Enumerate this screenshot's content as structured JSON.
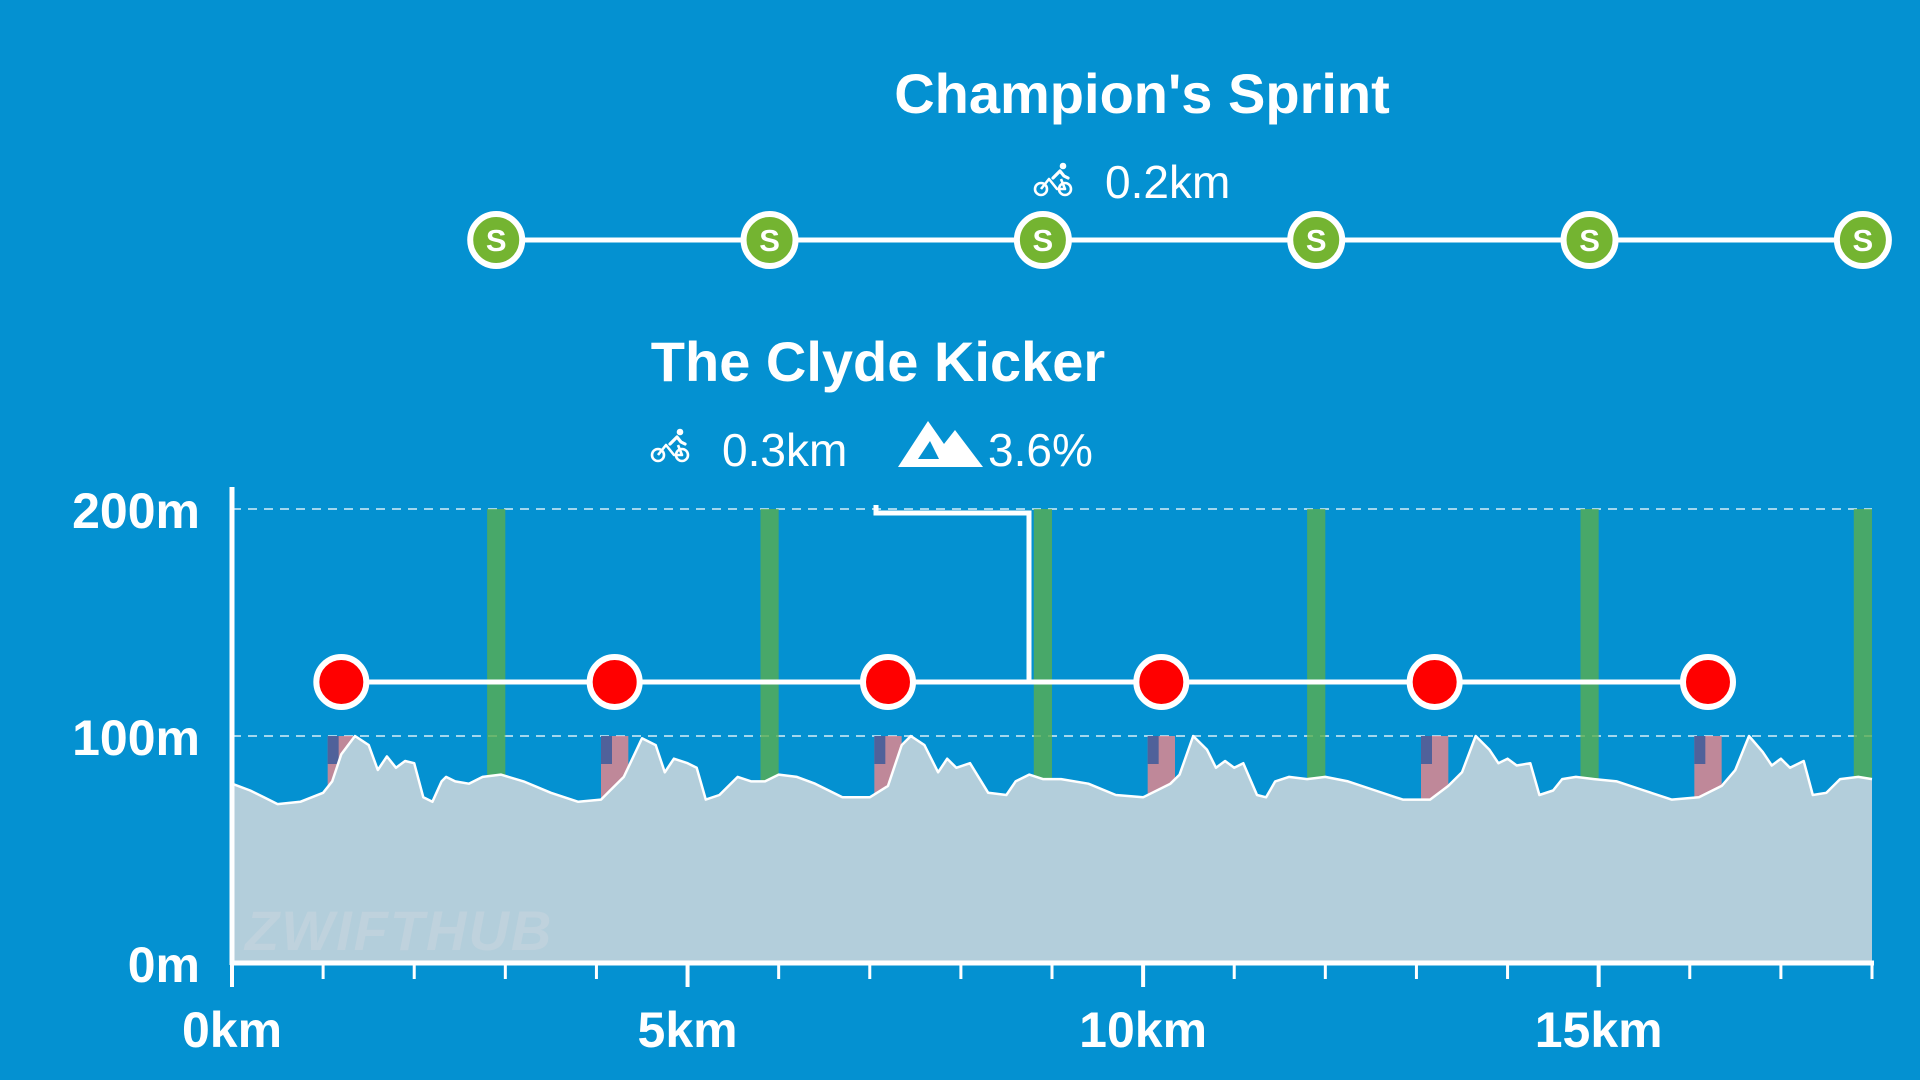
{
  "chart_data": {
    "type": "area",
    "xlabel": "",
    "ylabel": "",
    "x_unit": "km",
    "y_unit": "m",
    "xlim": [
      0,
      18
    ],
    "ylim": [
      0,
      200
    ],
    "x_ticks": [
      {
        "value": 0,
        "label": "0km"
      },
      {
        "value": 5,
        "label": "5km"
      },
      {
        "value": 10,
        "label": "10km"
      },
      {
        "value": 15,
        "label": "15km"
      }
    ],
    "y_ticks": [
      {
        "value": 0,
        "label": "0m"
      },
      {
        "value": 100,
        "label": "100m"
      },
      {
        "value": 200,
        "label": "200m"
      }
    ],
    "x_minor_ticks": [
      1,
      2,
      3,
      4,
      6,
      7,
      8,
      9,
      11,
      12,
      13,
      14,
      16,
      17,
      18
    ],
    "elevation": {
      "x": [
        0,
        0.2,
        0.35,
        0.5,
        0.75,
        1.0,
        1.1,
        1.2,
        1.35,
        1.5,
        1.6,
        1.7,
        1.8,
        1.9,
        2.0,
        2.1,
        2.2,
        2.3,
        2.35,
        2.45,
        2.6,
        2.75,
        2.95,
        3.2,
        3.5,
        3.8,
        4.05,
        4.15,
        4.3,
        4.5,
        4.65,
        4.75,
        4.85,
        5.0,
        5.1,
        5.2,
        5.35,
        5.45,
        5.55,
        5.7,
        5.85,
        6.0,
        6.2,
        6.4,
        6.7,
        7.0,
        7.2,
        7.35,
        7.45,
        7.6,
        7.75,
        7.85,
        7.95,
        8.1,
        8.3,
        8.5,
        8.6,
        8.75,
        8.9,
        9.1,
        9.4,
        9.7,
        10.0,
        10.3,
        10.4,
        10.55,
        10.7,
        10.8,
        10.9,
        11.0,
        11.1,
        11.25,
        11.35,
        11.45,
        11.6,
        11.8,
        12.0,
        12.25,
        12.55,
        12.85,
        13.15,
        13.35,
        13.5,
        13.65,
        13.8,
        13.9,
        14.0,
        14.1,
        14.25,
        14.35,
        14.5,
        14.6,
        14.75,
        14.95,
        15.2,
        15.5,
        15.8,
        16.1,
        16.35,
        16.5,
        16.65,
        16.8,
        16.9,
        17.0,
        17.1,
        17.25,
        17.35,
        17.5,
        17.65,
        17.85,
        18.0
      ],
      "y": [
        79,
        76,
        73,
        70,
        71,
        75,
        80,
        92,
        100,
        96,
        85,
        91,
        86,
        89,
        88,
        73,
        71,
        80,
        82,
        80,
        79,
        82,
        83,
        80,
        75,
        71,
        72,
        76,
        82,
        99,
        96,
        84,
        90,
        88,
        86,
        72,
        74,
        78,
        82,
        80,
        80,
        83,
        82,
        79,
        73,
        73,
        78,
        96,
        100,
        96,
        84,
        90,
        86,
        88,
        75,
        74,
        80,
        83,
        81,
        81,
        79,
        74,
        73,
        79,
        83,
        100,
        94,
        86,
        89,
        86,
        88,
        74,
        73,
        80,
        82,
        81,
        82,
        80,
        76,
        72,
        72,
        78,
        84,
        100,
        94,
        88,
        90,
        87,
        88,
        74,
        76,
        81,
        82,
        81,
        80,
        76,
        72,
        73,
        78,
        85,
        100,
        93,
        87,
        90,
        86,
        89,
        74,
        75,
        81,
        82,
        81
      ]
    },
    "climb_segments": [
      {
        "name": "The Clyde Kicker",
        "start": 1.05,
        "end": 1.35
      },
      {
        "name": "The Clyde Kicker",
        "start": 4.05,
        "end": 4.35
      },
      {
        "name": "The Clyde Kicker",
        "start": 7.05,
        "end": 7.35
      },
      {
        "name": "The Clyde Kicker",
        "start": 10.05,
        "end": 10.35
      },
      {
        "name": "The Clyde Kicker",
        "start": 13.05,
        "end": 13.35
      },
      {
        "name": "The Clyde Kicker",
        "start": 16.05,
        "end": 16.35
      }
    ],
    "sprint_segments": [
      {
        "name": "Champion's Sprint",
        "start": 2.8,
        "end": 3.0
      },
      {
        "name": "Champion's Sprint",
        "start": 5.8,
        "end": 6.0
      },
      {
        "name": "Champion's Sprint",
        "start": 8.8,
        "end": 9.0
      },
      {
        "name": "Champion's Sprint",
        "start": 11.8,
        "end": 12.0
      },
      {
        "name": "Champion's Sprint",
        "start": 14.8,
        "end": 15.0
      },
      {
        "name": "Champion's Sprint",
        "start": 17.8,
        "end": 18.0
      }
    ],
    "climb_marker_x": [
      1.2,
      4.2,
      7.2,
      10.2,
      13.2,
      16.2
    ],
    "sprint_marker_x": [
      2.9,
      5.9,
      8.9,
      11.9,
      14.9,
      17.9
    ],
    "grid": true,
    "colors": {
      "background": "#0491d1",
      "profile_fill": "#b3cedb",
      "profile_line": "#ffffff",
      "climb_band": "#e0868f",
      "sprint_band": "#5aae4f",
      "climb_marker": "#ff0000",
      "sprint_marker": "#74b431",
      "axis": "#ffffff"
    }
  },
  "sprint_label": {
    "name": "Champion's Sprint",
    "distance": "0.2km",
    "distance_icon": "cyclist-icon",
    "marker_letter": "S"
  },
  "climb_label": {
    "name": "The Clyde Kicker",
    "distance": "0.3km",
    "gradient": "3.6%",
    "distance_icon": "cyclist-icon",
    "gradient_icon": "mountain-icon"
  },
  "watermark": "ZWIFTHUB"
}
